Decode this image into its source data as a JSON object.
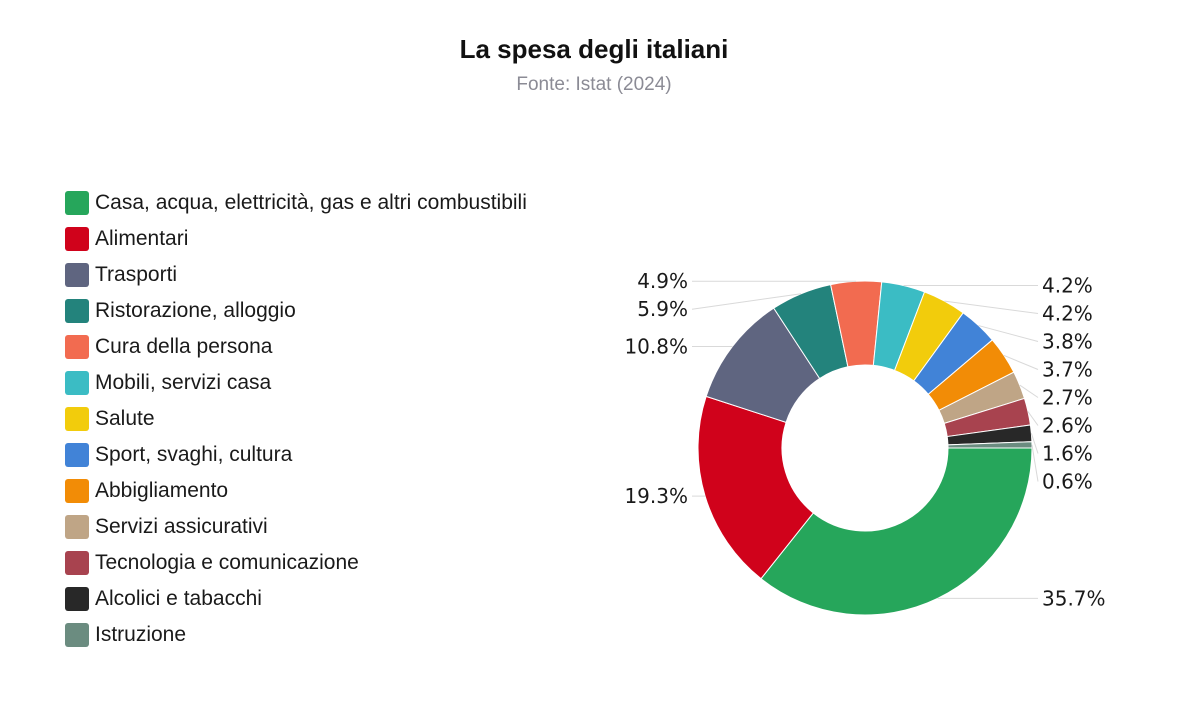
{
  "header": {
    "title": "La spesa degli italiani",
    "subtitle": "Fonte: Istat (2024)"
  },
  "chart_data": {
    "type": "pie",
    "hole": true,
    "legend_position": "left",
    "title": "La spesa degli italiani",
    "subtitle": "Fonte: Istat (2024)",
    "slices": [
      {
        "label": "Casa, acqua, elettricità, gas e altri combustibili",
        "value": 35.7,
        "value_label": "35.7%",
        "color": "#26a65b"
      },
      {
        "label": "Alimentari",
        "value": 19.3,
        "value_label": "19.3%",
        "color": "#d0021b"
      },
      {
        "label": "Trasporti",
        "value": 10.8,
        "value_label": "10.8%",
        "color": "#5f6580"
      },
      {
        "label": "Ristorazione, alloggio",
        "value": 5.9,
        "value_label": "5.9%",
        "color": "#23837c"
      },
      {
        "label": "Cura della persona",
        "value": 4.9,
        "value_label": "4.9%",
        "color": "#f26b50"
      },
      {
        "label": "Mobili, servizi casa",
        "value": 4.2,
        "value_label": "4.2%",
        "color": "#3bbcc4"
      },
      {
        "label": "Salute",
        "value": 4.2,
        "value_label": "4.2%",
        "color": "#f2cc0c"
      },
      {
        "label": "Sport, svaghi, cultura",
        "value": 3.8,
        "value_label": "3.8%",
        "color": "#4183d7"
      },
      {
        "label": "Abbigliamento",
        "value": 3.7,
        "value_label": "3.7%",
        "color": "#f28c06"
      },
      {
        "label": "Servizi assicurativi",
        "value": 2.7,
        "value_label": "2.7%",
        "color": "#bfa586"
      },
      {
        "label": "Tecnologia e comunicazione",
        "value": 2.6,
        "value_label": "2.6%",
        "color": "#a8434f"
      },
      {
        "label": "Alcolici e tabacchi",
        "value": 1.6,
        "value_label": "1.6%",
        "color": "#282828"
      },
      {
        "label": "Istruzione",
        "value": 0.6,
        "value_label": "0.6%",
        "color": "#6b8c80"
      }
    ]
  }
}
